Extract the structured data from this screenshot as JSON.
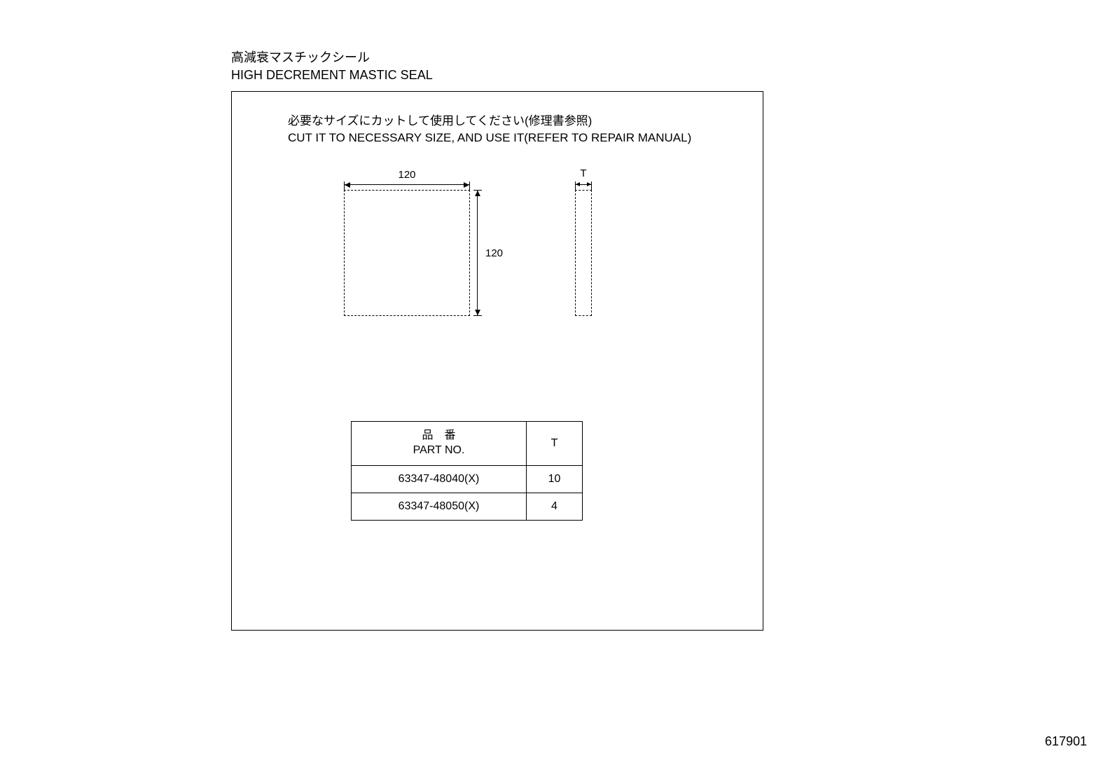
{
  "title": {
    "jp": "高減衰マスチックシール",
    "en": "HIGH DECREMENT MASTIC SEAL"
  },
  "instruction": {
    "jp": "必要なサイズにカットして使用してください(修理書参照)",
    "en": "CUT IT TO NECESSARY SIZE, AND USE IT(REFER TO REPAIR MANUAL)"
  },
  "diagram": {
    "square_width": "120",
    "square_height": "120",
    "thickness_label": "T",
    "line_color": "#000000",
    "dash_style": "dashed",
    "background_color": "#ffffff"
  },
  "table": {
    "header_partno_jp": "品　番",
    "header_partno_en": "PART NO.",
    "header_t": "T",
    "rows": [
      {
        "partno": "63347-48040(X)",
        "t": "10"
      },
      {
        "partno": "63347-48050(X)",
        "t": "4"
      }
    ]
  },
  "page_number": "617901"
}
